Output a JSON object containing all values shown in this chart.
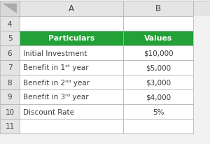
{
  "row_numbers": [
    "4",
    "5",
    "6",
    "7",
    "8",
    "9",
    "10",
    "11"
  ],
  "col_letters": [
    "A",
    "B"
  ],
  "header_row": [
    "Particulars",
    "Values"
  ],
  "data_rows": [
    [
      "Initial Investment",
      "$10,000"
    ],
    [
      "Benefit in 1ˢᵗ year",
      "$5,000"
    ],
    [
      "Benefit in 2ⁿᵈ year",
      "$3,000"
    ],
    [
      "Benefit in 3ʳᵈ year",
      "$4,000"
    ],
    [
      "Discount Rate",
      "5%"
    ]
  ],
  "header_bg": "#21A136",
  "header_fg": "#FFFFFF",
  "cell_bg": "#FFFFFF",
  "cell_fg": "#3D3D3D",
  "grid_color": "#B0B0B0",
  "row_num_bg": "#E4E4E4",
  "row_num_fg": "#444444",
  "col_letter_bg": "#E4E4E4",
  "col_letter_fg": "#444444",
  "corner_bg": "#D8D8D8",
  "fig_bg": "#F2F2F2",
  "fig_width": 3.0,
  "fig_height": 2.07,
  "dpi": 100
}
